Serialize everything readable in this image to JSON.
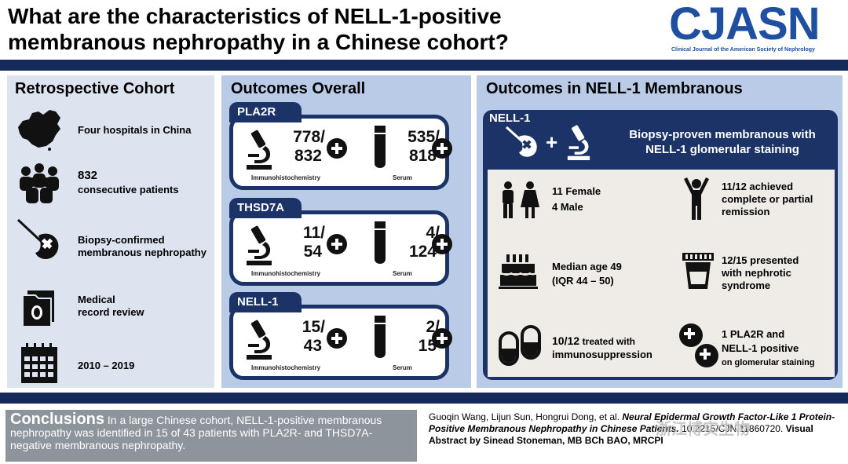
{
  "header": {
    "title_line1": "What are the characteristics of NELL-1-positive",
    "title_line2": "membranous nephropathy in a Chinese cohort?",
    "logo": "CJASN",
    "logo_subtitle": "Clinical Journal of the American Society of Nephrology"
  },
  "retro": {
    "title": "Retrospective Cohort",
    "rows": [
      {
        "icon": "china-map-icon",
        "line1": "Four hospitals in China",
        "line2": ""
      },
      {
        "icon": "people-group-icon",
        "line1": "832",
        "line2": "consecutive patients"
      },
      {
        "icon": "kidney-biopsy-icon",
        "line1": "Biopsy-confirmed",
        "line2": "membranous nephropathy"
      },
      {
        "icon": "medical-folder-icon",
        "line1": "Medical",
        "line2": "record review"
      },
      {
        "icon": "calendar-icon",
        "line1": "2010 – 2019",
        "line2": ""
      }
    ]
  },
  "overall": {
    "title": "Outcomes Overall",
    "cards": [
      {
        "name": "PLA2R",
        "ihc_num": "778/",
        "ihc_den": "832",
        "serum_num": "535/",
        "serum_den": "818",
        "ihc_label": "Immunohistochemistry",
        "serum_label": "Serum"
      },
      {
        "name": "THSD7A",
        "ihc_num": "11/",
        "ihc_den": "54",
        "serum_num": "4/",
        "serum_den": "124",
        "ihc_label": "Immunohistochemistry",
        "serum_label": "Serum"
      },
      {
        "name": "NELL-1",
        "ihc_num": "15/",
        "ihc_den": "43",
        "serum_num": "2/",
        "serum_den": "15",
        "ihc_label": "Immunohistochemistry",
        "serum_label": "Serum"
      }
    ]
  },
  "nell": {
    "title": "Outcomes in NELL-1 Membranous",
    "tab": "NELL-1",
    "desc_line1": "Biopsy-proven membranous with",
    "desc_line2": "NELL-1 glomerular staining",
    "stats": {
      "sex_1": "11 Female",
      "sex_2": "4 Male",
      "remission_1": "11/12 achieved",
      "remission_2": "complete or partial",
      "remission_3": "remission",
      "age_1": "Median age 49",
      "age_2": "(IQR 44 – 50)",
      "nephrotic_1": "12/15 presented",
      "nephrotic_2": "with nephrotic",
      "nephrotic_3": "syndrome",
      "immuno_num": "10/12",
      "immuno_1": "treated with",
      "immuno_2": "immunosuppression",
      "dual_1": "1 PLA2R and",
      "dual_2": "NELL-1 positive",
      "dual_3": "on glomerular staining"
    }
  },
  "conclusion": {
    "heading": "Conclusions",
    "text": " In a large Chinese cohort, NELL-1-positive membranous nephropathy was identified in 15 of 43 patients with PLA2R- and THSD7A-negative membranous nephropathy."
  },
  "citation": {
    "authors": "Guoqin Wang, Lijun Sun, Hongrui Dong, et al.",
    "title": "Neural Epidermal Growth Factor-Like 1 Protein-Positive Membranous Nephropathy in Chinese Patients.",
    "doi": "10.2215/CJN.11860720.",
    "credit": "Visual Abstract by Sinead Stoneman, MB BCh BAO, MRCPI"
  },
  "watermark": "浙江博实生物"
}
